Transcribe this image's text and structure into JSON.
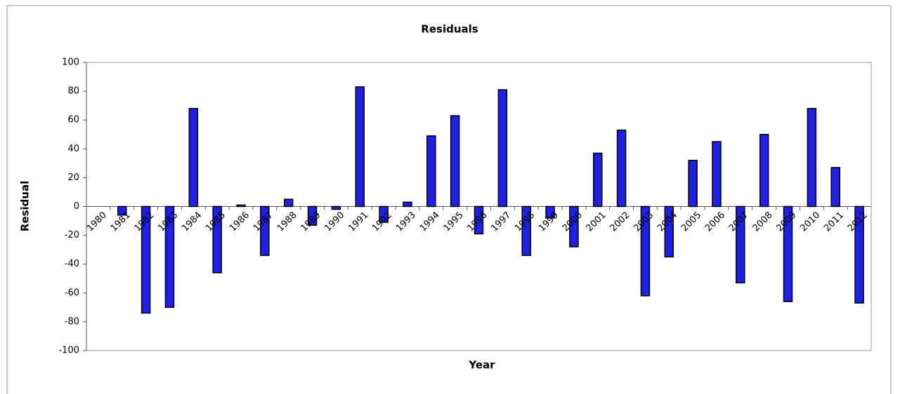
{
  "chart_data": {
    "type": "bar",
    "title": "Residuals",
    "x_label": "Year",
    "y_label": "Residual",
    "categories": [
      "1980",
      "1981",
      "1982",
      "1983",
      "1984",
      "1985",
      "1986",
      "1987",
      "1988",
      "1989",
      "1990",
      "1991",
      "1992",
      "1993",
      "1994",
      "1995",
      "1996",
      "1997",
      "1998",
      "1999",
      "2000",
      "2001",
      "2002",
      "2003",
      "2004",
      "2005",
      "2006",
      "2007",
      "2008",
      "2009",
      "2010",
      "2011",
      "2012"
    ],
    "values": [
      0,
      -6,
      -74,
      -70,
      68,
      -46,
      1,
      -34,
      5,
      -13,
      -2,
      83,
      -11,
      3,
      49,
      63,
      -19,
      81,
      -34,
      -8,
      -28,
      37,
      53,
      -62,
      -35,
      32,
      45,
      -53,
      50,
      -66,
      68,
      27,
      -67
    ],
    "color": "#1f1fe6",
    "ylim": [
      -100,
      100
    ],
    "yticks": [
      -100,
      -80,
      -60,
      -40,
      -20,
      0,
      20,
      40,
      60,
      80,
      100
    ],
    "grid": false
  }
}
